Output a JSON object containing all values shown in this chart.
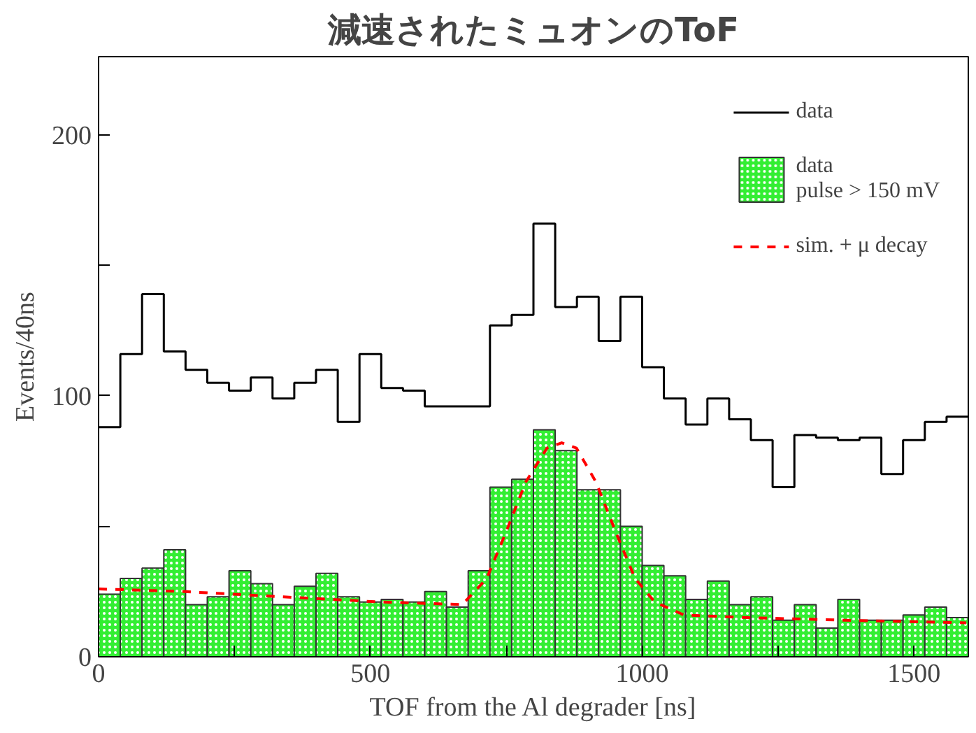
{
  "chart_data": {
    "type": "histogram",
    "title": "減速されたミュオンのToF",
    "xlabel": "TOF from the Al degrader [ns]",
    "ylabel": "Events/40ns",
    "bins": [
      0,
      40,
      80,
      120,
      160,
      200,
      240,
      280,
      320,
      360,
      400,
      440,
      480,
      520,
      560,
      600,
      640,
      680,
      720,
      760,
      800,
      840,
      880,
      920,
      960,
      1000,
      1040,
      1080,
      1120,
      1160,
      1200,
      1240,
      1280,
      1320,
      1360,
      1400,
      1440,
      1480,
      1520,
      1560,
      1600
    ],
    "series": [
      {
        "name": "data",
        "type": "step",
        "color": "#000000",
        "x": [
          0,
          40,
          80,
          120,
          160,
          200,
          240,
          280,
          320,
          360,
          400,
          440,
          480,
          520,
          560,
          600,
          640,
          680,
          720,
          760,
          800,
          840,
          880,
          920,
          960,
          1000,
          1040,
          1080,
          1120,
          1160,
          1200,
          1240,
          1280,
          1320,
          1360,
          1400,
          1440,
          1480,
          1520,
          1560,
          1600
        ],
        "values": [
          88,
          116,
          139,
          117,
          110,
          105,
          102,
          107,
          99,
          105,
          110,
          90,
          116,
          103,
          102,
          96,
          96,
          96,
          127,
          131,
          166,
          134,
          138,
          121,
          138,
          111,
          99,
          89,
          99,
          91,
          83,
          65,
          85,
          84,
          83,
          84,
          70,
          83,
          90,
          92,
          92
        ]
      },
      {
        "name": "data\npulse > 150 mV",
        "color": "#33ee33",
        "values": [
          24,
          30,
          34,
          41,
          20,
          23,
          33,
          28,
          20,
          27,
          32,
          23,
          21,
          22,
          21,
          25,
          19,
          33,
          65,
          68,
          87,
          79,
          64,
          64,
          50,
          35,
          31,
          22,
          29,
          20,
          23,
          14,
          20,
          11,
          22,
          14,
          14,
          16,
          19,
          15
        ]
      },
      {
        "name": "sim. + μ decay",
        "type": "line",
        "color": "#ff0000",
        "line_style": "dashed",
        "x": [
          0,
          156,
          337,
          518,
          669,
          714,
          750,
          786,
          825,
          852,
          879,
          915,
          951,
          987,
          1023,
          1077,
          1194,
          1375,
          1596
        ],
        "values": [
          26,
          25,
          23,
          21,
          20,
          30,
          48,
          67,
          80,
          82,
          80,
          67,
          48,
          30,
          21,
          16,
          15,
          14,
          13
        ]
      }
    ],
    "xlim": [
      0,
      1600
    ],
    "ylim": [
      0,
      230
    ],
    "xticks": [
      0,
      {
        "value": 250,
        "label": null
      },
      500,
      {
        "value": 750,
        "label": null
      },
      1000,
      {
        "value": 1250,
        "label": null
      },
      1500
    ],
    "yticks": [
      0,
      {
        "value": 50,
        "label": null
      },
      100,
      {
        "value": 150,
        "label": null
      },
      200
    ],
    "legend": "top right",
    "grid": false
  }
}
